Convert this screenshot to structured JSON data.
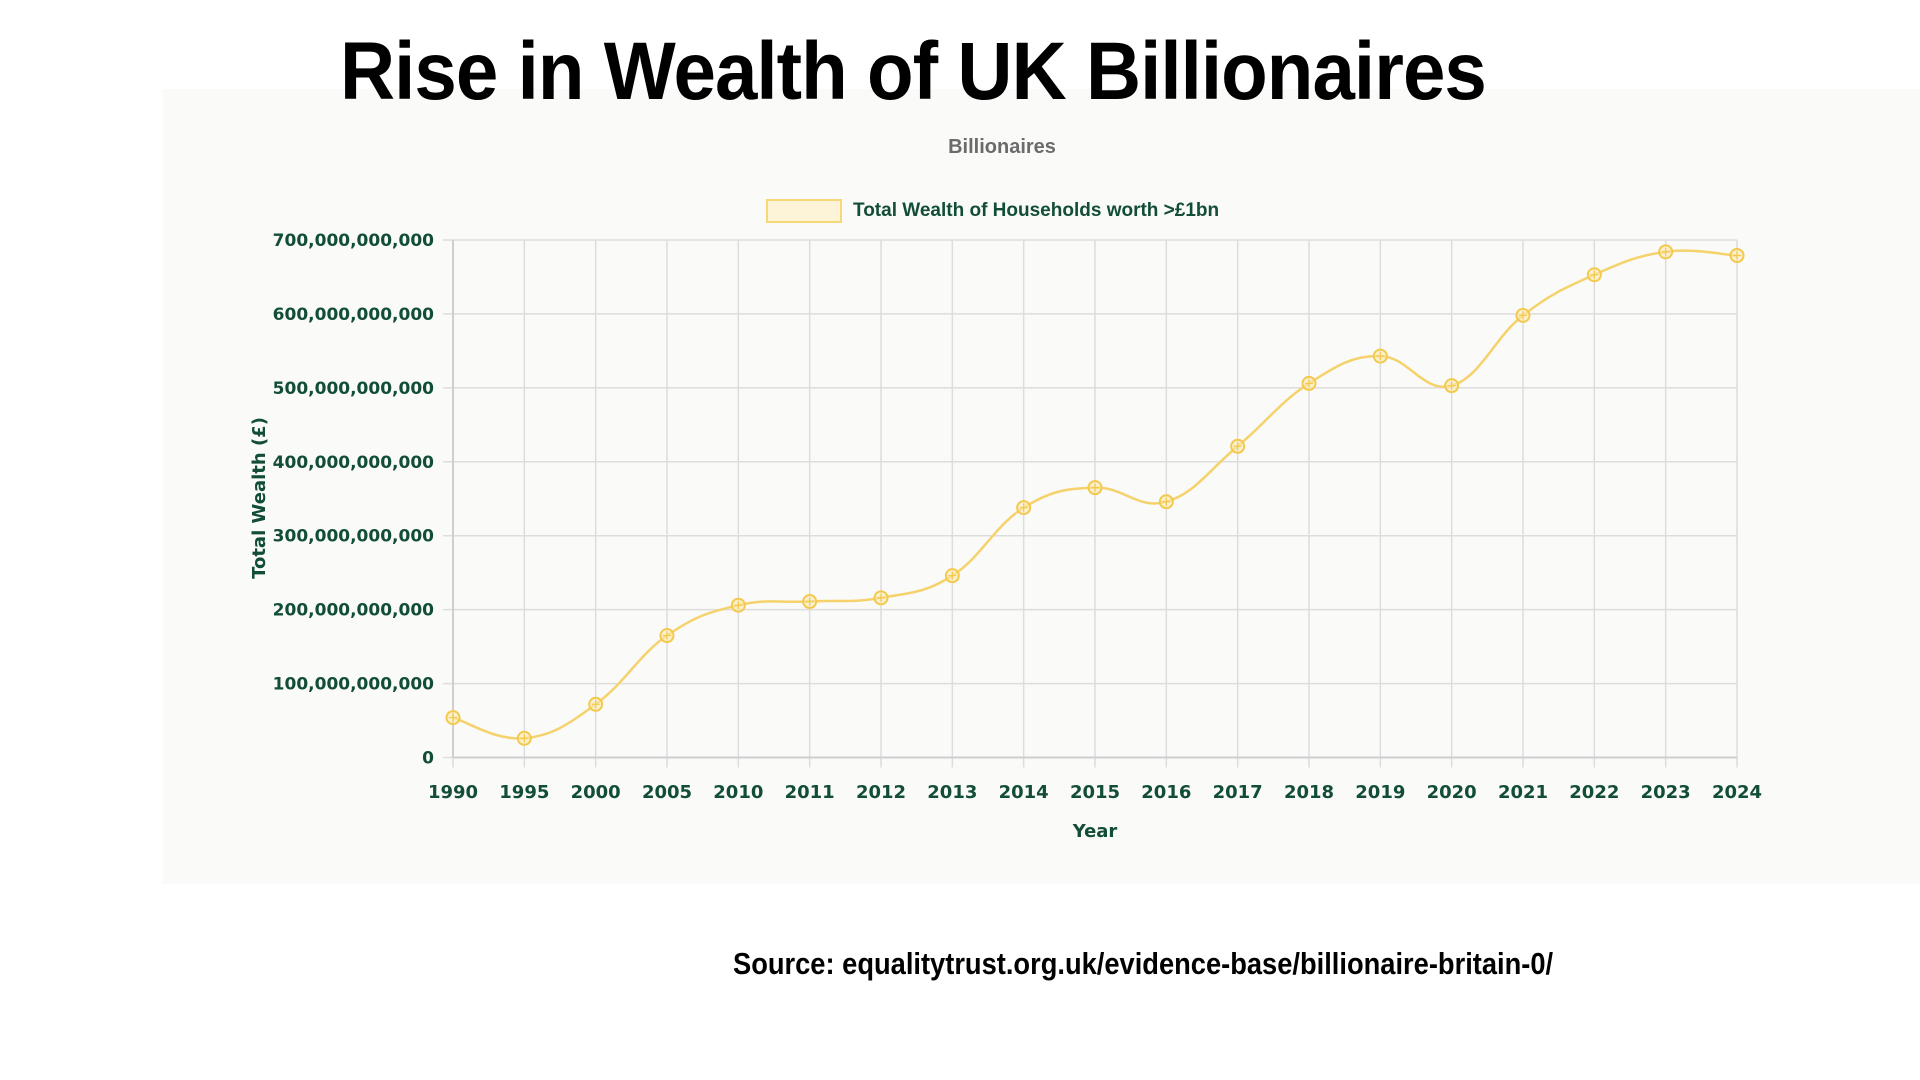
{
  "page": {
    "title": "Rise in Wealth of UK Billionaires",
    "source": "Source: equalitytrust.org.uk/evidence-base/billionaire-britain-0/"
  },
  "colors": {
    "line": "#f5d26b",
    "point_stroke": "#f3c94e",
    "point_fill": "#fbe9ad",
    "grid": "#dddddd",
    "axis_text": "#124d38",
    "subtitle": "#6b6b6b"
  },
  "chart_data": {
    "type": "line",
    "title": "Billionaires",
    "xlabel": "Year",
    "ylabel": "Total Wealth (£)",
    "legend": [
      "Total Wealth of Households worth >£1bn"
    ],
    "legend_position": "top",
    "grid": true,
    "ylim": [
      0,
      700000000000
    ],
    "yticks": [
      0,
      100000000000,
      200000000000,
      300000000000,
      400000000000,
      500000000000,
      600000000000,
      700000000000
    ],
    "ytick_labels": [
      "0",
      "100,000,000,000",
      "200,000,000,000",
      "300,000,000,000",
      "400,000,000,000",
      "500,000,000,000",
      "600,000,000,000",
      "700,000,000,000"
    ],
    "categories": [
      "1990",
      "1995",
      "2000",
      "2005",
      "2010",
      "2011",
      "2012",
      "2013",
      "2014",
      "2015",
      "2016",
      "2017",
      "2018",
      "2019",
      "2020",
      "2021",
      "2022",
      "2023",
      "2024"
    ],
    "series": [
      {
        "name": "Total Wealth of Households worth >£1bn",
        "values": [
          54000000000,
          26000000000,
          72000000000,
          165000000000,
          206000000000,
          211000000000,
          216000000000,
          246000000000,
          338000000000,
          365000000000,
          346000000000,
          421000000000,
          506000000000,
          543000000000,
          503000000000,
          598000000000,
          653000000000,
          684000000000,
          679000000000
        ]
      }
    ]
  }
}
